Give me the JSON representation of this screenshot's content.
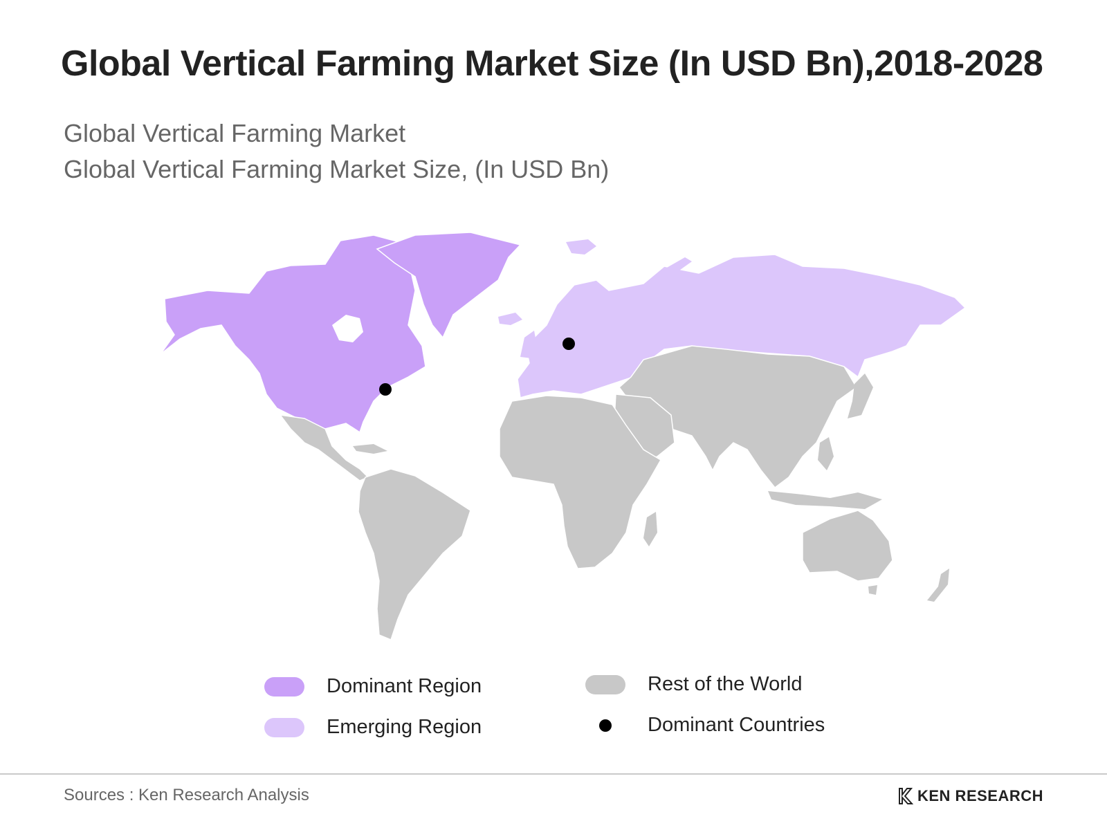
{
  "title": "Global Vertical Farming Market Size (In USD Bn),2018-2028",
  "subtitle_1": "Global Vertical Farming Market",
  "subtitle_2": "Global Vertical Farming Market Size, (In USD Bn)",
  "colors": {
    "dominant": "#c9a0f8",
    "emerging": "#dcc6fb",
    "rest": "#c8c8c8",
    "countries_dot": "#000000"
  },
  "map": {
    "regions": [
      {
        "name": "North America",
        "category": "dominant"
      },
      {
        "name": "Greenland",
        "category": "dominant"
      },
      {
        "name": "Europe",
        "category": "emerging"
      },
      {
        "name": "Russia",
        "category": "emerging"
      },
      {
        "name": "Latin America",
        "category": "rest"
      },
      {
        "name": "Africa",
        "category": "rest"
      },
      {
        "name": "Asia",
        "category": "rest"
      },
      {
        "name": "Oceania",
        "category": "rest"
      }
    ],
    "dominant_country_markers": [
      {
        "location": "United States (east coast)"
      },
      {
        "location": "Germany"
      }
    ]
  },
  "legend": {
    "dominant": "Dominant Region",
    "emerging": "Emerging Region",
    "rest": "Rest of the World",
    "countries": "Dominant Countries"
  },
  "footer": {
    "source": "Sources : Ken Research Analysis",
    "logo_text": "KEN RESEARCH"
  }
}
